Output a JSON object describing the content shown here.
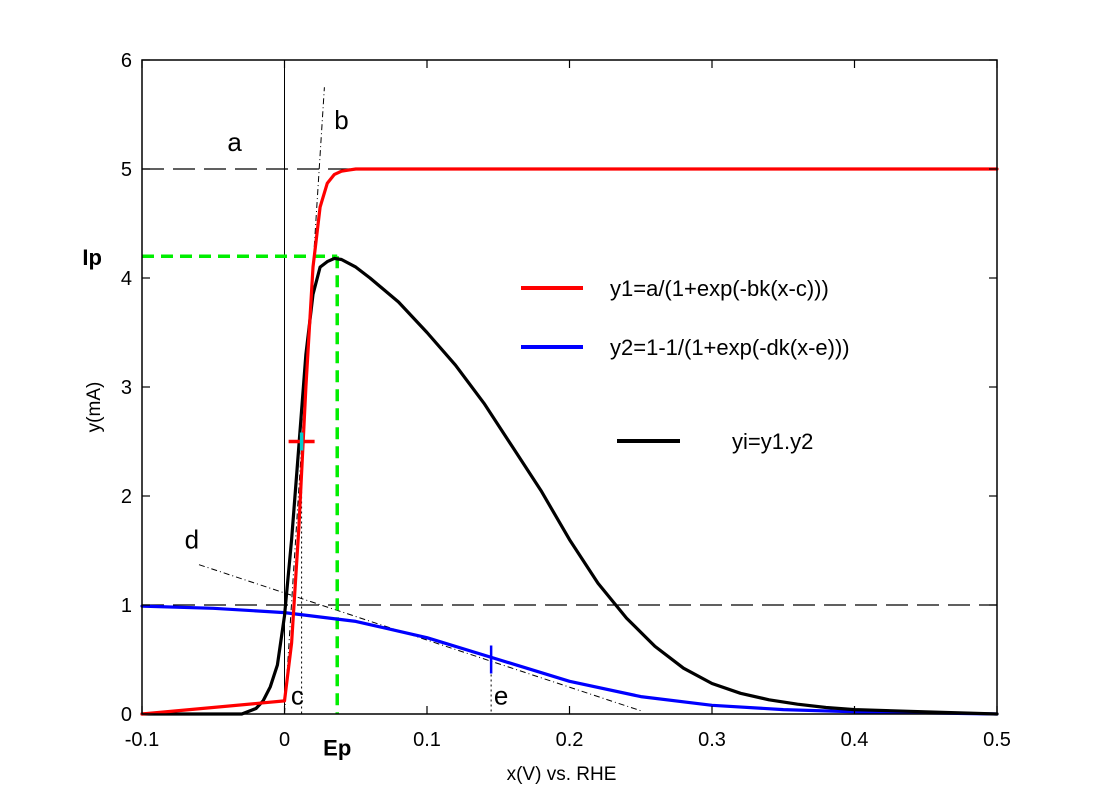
{
  "chart_data": {
    "type": "line",
    "title": "",
    "xlabel": "x(V) vs. RHE",
    "ylabel": "y(mA)",
    "xlim": [
      -0.1,
      0.5
    ],
    "ylim": [
      0,
      6
    ],
    "x_ticks": [
      -0.1,
      0,
      0.1,
      0.2,
      0.3,
      0.4,
      0.5
    ],
    "x_tick_labels": [
      "-0.1",
      "0",
      "0.1",
      "0.2",
      "0.3",
      "0.4",
      "0.5"
    ],
    "y_ticks": [
      0,
      1,
      2,
      3,
      4,
      5,
      6
    ],
    "y_tick_labels": [
      "0",
      "1",
      "2",
      "3",
      "4",
      "5",
      "6"
    ],
    "grid": false,
    "legend_position": "right",
    "colors": {
      "y1": "#ff0000",
      "y2": "#0000ff",
      "yi": "#000000",
      "peak": "#00ee00",
      "c_marker": "#00cccc"
    },
    "series": [
      {
        "name": "y1=a/(1+exp(-bk(x-c)))",
        "color": "#ff0000",
        "x": [
          -0.1,
          0.0,
          0.005,
          0.01,
          0.015,
          0.02,
          0.025,
          0.03,
          0.035,
          0.04,
          0.045,
          0.05,
          0.055,
          0.06,
          0.1,
          0.2,
          0.3,
          0.4,
          0.5
        ],
        "y": [
          0.0,
          0.12,
          0.65,
          1.7,
          3.0,
          4.1,
          4.65,
          4.87,
          4.95,
          4.98,
          4.99,
          5.0,
          5.0,
          5.0,
          5.0,
          5.0,
          5.0,
          5.0,
          5.0
        ]
      },
      {
        "name": "y2=1-1/(1+exp(-dk(x-e)))",
        "color": "#0000ff",
        "x": [
          -0.1,
          -0.05,
          0.0,
          0.05,
          0.1,
          0.15,
          0.2,
          0.25,
          0.3,
          0.35,
          0.4,
          0.45,
          0.5
        ],
        "y": [
          0.99,
          0.97,
          0.93,
          0.85,
          0.7,
          0.5,
          0.3,
          0.16,
          0.08,
          0.04,
          0.02,
          0.01,
          0.0
        ]
      },
      {
        "name": "yi=y1.y2",
        "color": "#000000",
        "x": [
          -0.1,
          -0.04,
          -0.03,
          -0.02,
          -0.015,
          -0.01,
          -0.005,
          0.0,
          0.005,
          0.01,
          0.015,
          0.02,
          0.025,
          0.03,
          0.035,
          0.04,
          0.05,
          0.06,
          0.08,
          0.1,
          0.12,
          0.14,
          0.16,
          0.18,
          0.2,
          0.22,
          0.24,
          0.26,
          0.28,
          0.3,
          0.32,
          0.34,
          0.36,
          0.38,
          0.4,
          0.45,
          0.5
        ],
        "y": [
          0.0,
          0.0,
          0.0,
          0.05,
          0.12,
          0.25,
          0.45,
          0.9,
          1.6,
          2.45,
          3.3,
          3.85,
          4.1,
          4.15,
          4.18,
          4.17,
          4.1,
          4.0,
          3.78,
          3.5,
          3.2,
          2.85,
          2.45,
          2.05,
          1.6,
          1.2,
          0.88,
          0.62,
          0.42,
          0.28,
          0.19,
          0.13,
          0.09,
          0.06,
          0.04,
          0.02,
          0.0
        ]
      }
    ],
    "reference_lines": {
      "a_level": 5,
      "unit_level": 1,
      "peak_current": 4.2,
      "peak_potential": 0.037,
      "c_position": 0.012,
      "e_position": 0.145,
      "zero_x": 0
    },
    "annotations": [
      {
        "text": "a",
        "x": -0.035,
        "y": 5.25
      },
      {
        "text": "b",
        "x": 0.04,
        "y": 5.45
      },
      {
        "text": "c",
        "x": 0.009,
        "y": 0.17
      },
      {
        "text": "d",
        "x": -0.065,
        "y": 1.6
      },
      {
        "text": "e",
        "x": 0.152,
        "y": 0.17
      },
      {
        "text": "Ip",
        "x": -0.135,
        "y": 4.2
      },
      {
        "text": "Ep",
        "x": 0.037,
        "y": -0.3
      }
    ],
    "c_marker": {
      "x": 0.012,
      "y": 2.5
    },
    "e_marker": {
      "x": 0.145,
      "y": 0.5
    },
    "tangent_b": {
      "x": [
        0.0,
        0.028
      ],
      "y": [
        0.0,
        5.75
      ]
    },
    "tangent_d": {
      "x": [
        -0.06,
        0.25
      ],
      "y": [
        1.37,
        0.03
      ]
    }
  },
  "legend": [
    {
      "label": "y1=a/(1+exp(-bk(x-c)))",
      "color": "#ff0000"
    },
    {
      "label": "y2=1-1/(1+exp(-dk(x-e)))",
      "color": "#0000ff"
    },
    {
      "label": "yi=y1.y2",
      "color": "#000000"
    }
  ]
}
